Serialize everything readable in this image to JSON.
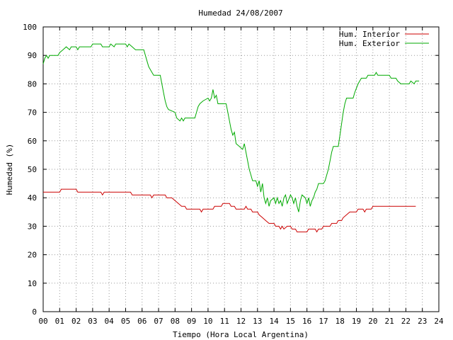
{
  "chart_data": {
    "type": "line",
    "title": "Humedad 24/08/2007",
    "xlabel": "Tiempo (Hora Local Argentina)",
    "ylabel": "Humedad (%)",
    "xlim": [
      0,
      24
    ],
    "ylim": [
      0,
      100
    ],
    "grid": true,
    "legend_position": "top-right",
    "x_ticks": [
      "00",
      "01",
      "02",
      "03",
      "04",
      "05",
      "06",
      "07",
      "08",
      "09",
      "10",
      "11",
      "12",
      "13",
      "14",
      "15",
      "16",
      "17",
      "18",
      "19",
      "20",
      "21",
      "22",
      "23",
      "24"
    ],
    "y_ticks": [
      "0",
      "10",
      "20",
      "30",
      "40",
      "50",
      "60",
      "70",
      "80",
      "90",
      "100"
    ],
    "series": [
      {
        "name": "Hum. Interior",
        "color": "#cc0000",
        "points": [
          [
            0,
            42
          ],
          [
            1.0,
            42
          ],
          [
            1.1,
            43
          ],
          [
            2.0,
            43
          ],
          [
            2.1,
            42
          ],
          [
            3.5,
            42
          ],
          [
            3.6,
            41
          ],
          [
            3.7,
            42
          ],
          [
            5.3,
            42
          ],
          [
            5.4,
            41
          ],
          [
            6.5,
            41
          ],
          [
            6.6,
            40
          ],
          [
            6.7,
            41
          ],
          [
            7.4,
            41
          ],
          [
            7.5,
            40
          ],
          [
            7.8,
            40
          ],
          [
            8.0,
            39
          ],
          [
            8.2,
            38
          ],
          [
            8.4,
            37
          ],
          [
            8.6,
            37
          ],
          [
            8.7,
            36
          ],
          [
            9.5,
            36
          ],
          [
            9.6,
            35
          ],
          [
            9.7,
            36
          ],
          [
            10.3,
            36
          ],
          [
            10.4,
            37
          ],
          [
            10.8,
            37
          ],
          [
            10.9,
            38
          ],
          [
            11.3,
            38
          ],
          [
            11.4,
            37
          ],
          [
            11.6,
            37
          ],
          [
            11.7,
            36
          ],
          [
            12.2,
            36
          ],
          [
            12.3,
            37
          ],
          [
            12.4,
            36
          ],
          [
            12.6,
            36
          ],
          [
            12.7,
            35
          ],
          [
            13.0,
            35
          ],
          [
            13.1,
            34
          ],
          [
            13.3,
            33
          ],
          [
            13.5,
            32
          ],
          [
            13.7,
            31
          ],
          [
            14.0,
            31
          ],
          [
            14.1,
            30
          ],
          [
            14.3,
            30
          ],
          [
            14.4,
            29
          ],
          [
            14.5,
            30
          ],
          [
            14.6,
            29
          ],
          [
            14.8,
            30
          ],
          [
            15.0,
            30
          ],
          [
            15.1,
            29
          ],
          [
            15.3,
            29
          ],
          [
            15.4,
            28
          ],
          [
            16.0,
            28
          ],
          [
            16.1,
            29
          ],
          [
            16.5,
            29
          ],
          [
            16.6,
            28
          ],
          [
            16.7,
            29
          ],
          [
            16.9,
            29
          ],
          [
            17.0,
            30
          ],
          [
            17.4,
            30
          ],
          [
            17.5,
            31
          ],
          [
            17.8,
            31
          ],
          [
            17.9,
            32
          ],
          [
            18.1,
            32
          ],
          [
            18.2,
            33
          ],
          [
            18.4,
            34
          ],
          [
            18.6,
            35
          ],
          [
            19.0,
            35
          ],
          [
            19.1,
            36
          ],
          [
            19.4,
            36
          ],
          [
            19.5,
            35
          ],
          [
            19.6,
            36
          ],
          [
            19.9,
            36
          ],
          [
            20.0,
            37
          ],
          [
            22.6,
            37
          ]
        ]
      },
      {
        "name": "Hum. Exterior",
        "color": "#00aa00",
        "points": [
          [
            0,
            87
          ],
          [
            0.1,
            89
          ],
          [
            0.2,
            90
          ],
          [
            0.3,
            89
          ],
          [
            0.4,
            90
          ],
          [
            0.9,
            90
          ],
          [
            1.0,
            91
          ],
          [
            1.2,
            92
          ],
          [
            1.4,
            93
          ],
          [
            1.6,
            92
          ],
          [
            1.7,
            93
          ],
          [
            2.0,
            93
          ],
          [
            2.1,
            92
          ],
          [
            2.2,
            93
          ],
          [
            2.9,
            93
          ],
          [
            3.0,
            94
          ],
          [
            3.5,
            94
          ],
          [
            3.6,
            93
          ],
          [
            4.0,
            93
          ],
          [
            4.1,
            94
          ],
          [
            4.3,
            93
          ],
          [
            4.4,
            94
          ],
          [
            5.0,
            94
          ],
          [
            5.1,
            93
          ],
          [
            5.2,
            94
          ],
          [
            5.4,
            93
          ],
          [
            5.6,
            92
          ],
          [
            6.1,
            92
          ],
          [
            6.2,
            90
          ],
          [
            6.3,
            88
          ],
          [
            6.4,
            86
          ],
          [
            6.5,
            85
          ],
          [
            6.6,
            84
          ],
          [
            6.7,
            83
          ],
          [
            7.1,
            83
          ],
          [
            7.2,
            80
          ],
          [
            7.3,
            77
          ],
          [
            7.4,
            74
          ],
          [
            7.5,
            72
          ],
          [
            7.6,
            71
          ],
          [
            8.0,
            70
          ],
          [
            8.1,
            68
          ],
          [
            8.3,
            67
          ],
          [
            8.4,
            68
          ],
          [
            8.5,
            67
          ],
          [
            8.6,
            68
          ],
          [
            9.2,
            68
          ],
          [
            9.3,
            70
          ],
          [
            9.4,
            72
          ],
          [
            9.5,
            73
          ],
          [
            9.7,
            74
          ],
          [
            10.0,
            75
          ],
          [
            10.1,
            74
          ],
          [
            10.2,
            75
          ],
          [
            10.3,
            78
          ],
          [
            10.4,
            75
          ],
          [
            10.5,
            76
          ],
          [
            10.6,
            73
          ],
          [
            11.1,
            73
          ],
          [
            11.2,
            70
          ],
          [
            11.3,
            67
          ],
          [
            11.4,
            64
          ],
          [
            11.5,
            62
          ],
          [
            11.6,
            63
          ],
          [
            11.7,
            59
          ],
          [
            11.9,
            58
          ],
          [
            12.1,
            57
          ],
          [
            12.2,
            59
          ],
          [
            12.3,
            56
          ],
          [
            12.4,
            53
          ],
          [
            12.5,
            50
          ],
          [
            12.6,
            48
          ],
          [
            12.7,
            46
          ],
          [
            12.9,
            46
          ],
          [
            13.0,
            44
          ],
          [
            13.1,
            46
          ],
          [
            13.2,
            42
          ],
          [
            13.3,
            45
          ],
          [
            13.4,
            40
          ],
          [
            13.5,
            38
          ],
          [
            13.6,
            40
          ],
          [
            13.7,
            37
          ],
          [
            13.8,
            39
          ],
          [
            14.0,
            40
          ],
          [
            14.1,
            38
          ],
          [
            14.2,
            40
          ],
          [
            14.3,
            38
          ],
          [
            14.4,
            39
          ],
          [
            14.5,
            37
          ],
          [
            14.6,
            40
          ],
          [
            14.7,
            41
          ],
          [
            14.8,
            38
          ],
          [
            15.0,
            41
          ],
          [
            15.1,
            40
          ],
          [
            15.2,
            38
          ],
          [
            15.3,
            40
          ],
          [
            15.4,
            37
          ],
          [
            15.5,
            35
          ],
          [
            15.6,
            39
          ],
          [
            15.7,
            41
          ],
          [
            15.9,
            40
          ],
          [
            16.0,
            38
          ],
          [
            16.1,
            40
          ],
          [
            16.2,
            37
          ],
          [
            16.3,
            39
          ],
          [
            16.4,
            40
          ],
          [
            16.5,
            42
          ],
          [
            16.6,
            43
          ],
          [
            16.7,
            45
          ],
          [
            17.0,
            45
          ],
          [
            17.1,
            46
          ],
          [
            17.2,
            48
          ],
          [
            17.3,
            50
          ],
          [
            17.4,
            53
          ],
          [
            17.5,
            56
          ],
          [
            17.6,
            58
          ],
          [
            17.9,
            58
          ],
          [
            18.0,
            62
          ],
          [
            18.1,
            66
          ],
          [
            18.2,
            70
          ],
          [
            18.3,
            73
          ],
          [
            18.4,
            75
          ],
          [
            18.8,
            75
          ],
          [
            18.9,
            77
          ],
          [
            19.1,
            80
          ],
          [
            19.3,
            82
          ],
          [
            19.6,
            82
          ],
          [
            19.7,
            83
          ],
          [
            20.1,
            83
          ],
          [
            20.2,
            84
          ],
          [
            20.3,
            83
          ],
          [
            21.0,
            83
          ],
          [
            21.1,
            82
          ],
          [
            21.4,
            82
          ],
          [
            21.5,
            81
          ],
          [
            21.7,
            80
          ],
          [
            22.2,
            80
          ],
          [
            22.3,
            81
          ],
          [
            22.5,
            80
          ],
          [
            22.6,
            81
          ],
          [
            22.8,
            81
          ]
        ]
      }
    ]
  }
}
